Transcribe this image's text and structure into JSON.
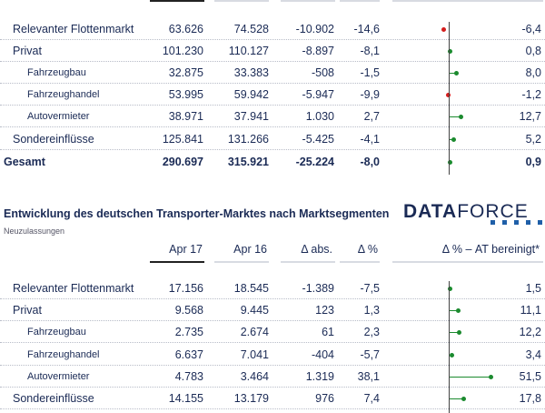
{
  "table1": {
    "rows": [
      {
        "label": "Relevanter Flottenmarkt",
        "sub": false,
        "v1": "63.626",
        "v2": "74.528",
        "abs": "-10.902",
        "pct": "-14,6",
        "adj": "-6,4",
        "adj_value": -6.4
      },
      {
        "label": "Privat",
        "sub": false,
        "v1": "101.230",
        "v2": "110.127",
        "abs": "-8.897",
        "pct": "-8,1",
        "adj": "0,8",
        "adj_value": 0.8
      },
      {
        "label": "Fahrzeugbau",
        "sub": true,
        "v1": "32.875",
        "v2": "33.383",
        "abs": "-508",
        "pct": "-1,5",
        "adj": "8,0",
        "adj_value": 8.0
      },
      {
        "label": "Fahrzeughandel",
        "sub": true,
        "v1": "53.995",
        "v2": "59.942",
        "abs": "-5.947",
        "pct": "-9,9",
        "adj": "-1,2",
        "adj_value": -1.2
      },
      {
        "label": "Autovermieter",
        "sub": true,
        "v1": "38.971",
        "v2": "37.941",
        "abs": "1.030",
        "pct": "2,7",
        "adj": "12,7",
        "adj_value": 12.7
      },
      {
        "label": "Sondereinflüsse",
        "sub": false,
        "v1": "125.841",
        "v2": "131.266",
        "abs": "-5.425",
        "pct": "-4,1",
        "adj": "5,2",
        "adj_value": 5.2
      },
      {
        "label": "Gesamt",
        "total": true,
        "v1": "290.697",
        "v2": "315.921",
        "abs": "-25.224",
        "pct": "-8,0",
        "adj": "0,9",
        "adj_value": 0.9
      }
    ]
  },
  "section2": {
    "title": "Entwicklung des deutschen Transporter-Marktes nach Marktsegmenten",
    "subtitle": "Neuzulassungen",
    "logo_bold": "DATA",
    "logo_thin": "FORCE",
    "headers": {
      "c1": "Apr 17",
      "c2": "Apr 16",
      "abs": "Δ abs.",
      "pct": "Δ %",
      "adj": "Δ % – AT bereinigt*"
    }
  },
  "table2": {
    "rows": [
      {
        "label": "Relevanter Flottenmarkt",
        "sub": false,
        "v1": "17.156",
        "v2": "18.545",
        "abs": "-1.389",
        "pct": "-7,5",
        "adj": "1,5",
        "adj_value": 1.5
      },
      {
        "label": "Privat",
        "sub": false,
        "v1": "9.568",
        "v2": "9.445",
        "abs": "123",
        "pct": "1,3",
        "adj": "11,1",
        "adj_value": 11.1
      },
      {
        "label": "Fahrzeugbau",
        "sub": true,
        "v1": "2.735",
        "v2": "2.674",
        "abs": "61",
        "pct": "2,3",
        "adj": "12,2",
        "adj_value": 12.2
      },
      {
        "label": "Fahrzeughandel",
        "sub": true,
        "v1": "6.637",
        "v2": "7.041",
        "abs": "-404",
        "pct": "-5,7",
        "adj": "3,4",
        "adj_value": 3.4
      },
      {
        "label": "Autovermieter",
        "sub": true,
        "v1": "4.783",
        "v2": "3.464",
        "abs": "1.319",
        "pct": "38,1",
        "adj": "51,5",
        "adj_value": 51.5
      },
      {
        "label": "Sondereinflüsse",
        "sub": false,
        "v1": "14.155",
        "v2": "13.179",
        "abs": "976",
        "pct": "7,4",
        "adj": "17,8",
        "adj_value": 17.8
      }
    ]
  }
}
